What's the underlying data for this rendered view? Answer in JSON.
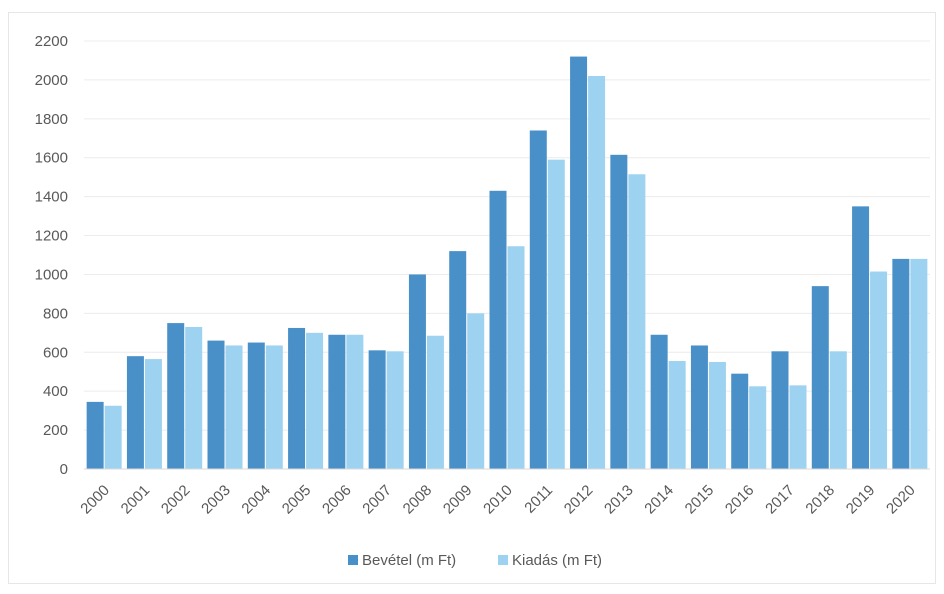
{
  "chart_data": {
    "type": "bar",
    "title": "",
    "xlabel": "",
    "ylabel": "",
    "categories": [
      "2000",
      "2001",
      "2002",
      "2003",
      "2004",
      "2005",
      "2006",
      "2007",
      "2008",
      "2009",
      "2010",
      "2011",
      "2012",
      "2013",
      "2014",
      "2015",
      "2016",
      "2017",
      "2018",
      "2019",
      "2020"
    ],
    "series": [
      {
        "name": "Bevétel (m Ft)",
        "color": "#4a90c8",
        "values": [
          345,
          580,
          750,
          660,
          650,
          725,
          690,
          610,
          1000,
          1120,
          1430,
          1740,
          2120,
          1615,
          690,
          635,
          490,
          605,
          940,
          1350,
          1080
        ]
      },
      {
        "name": "Kiadás (m Ft)",
        "color": "#9dd2f0",
        "values": [
          325,
          565,
          730,
          635,
          635,
          700,
          690,
          605,
          685,
          800,
          1145,
          1590,
          2020,
          1515,
          555,
          550,
          425,
          430,
          605,
          1015,
          1080
        ]
      }
    ],
    "ylim": [
      0,
      2200
    ],
    "yticks": [
      0,
      200,
      400,
      600,
      800,
      1000,
      1200,
      1400,
      1600,
      1800,
      2000,
      2200
    ],
    "grid": true,
    "legend_position": "bottom"
  }
}
